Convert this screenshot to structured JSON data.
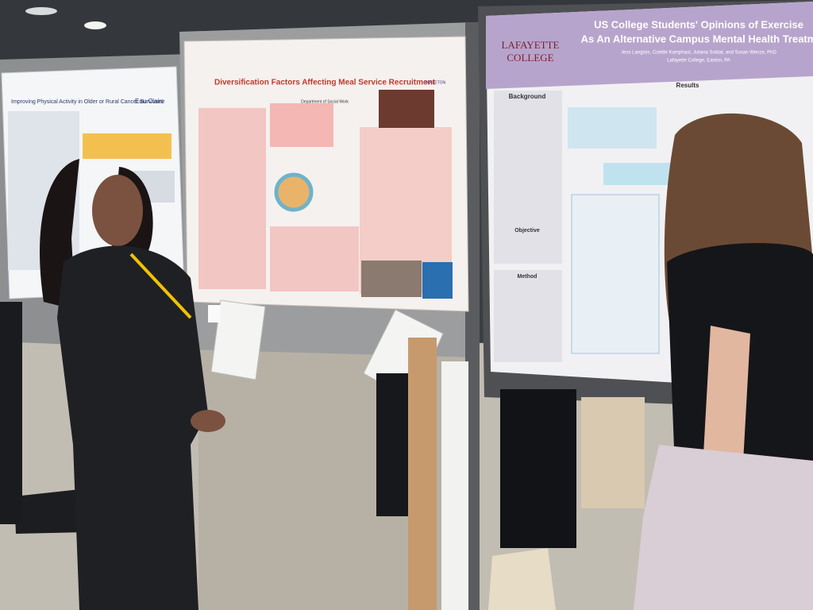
{
  "posters": {
    "left": {
      "title": "Improving Physical Activity in Older or Rural Cancer Survivors",
      "institution": "Eau Claire"
    },
    "center": {
      "title": "Diversification Factors Affecting Meal Service Recruitment",
      "department": "Department of Social Work",
      "logo": "TARLETON"
    },
    "right": {
      "title_lines": [
        "US College Students' Opinions of Exercise",
        "As An Alternative Campus Mental Health Treatm"
      ],
      "college_lines": [
        "LAFAYETTE",
        "COLLEGE"
      ],
      "authors": "Jess Langlois, Colette Kamphaul, Juliana Soldat, and Susan Wenze, PhD",
      "affiliation": "Lafayette College, Easton, PA",
      "sections": [
        "Background",
        "Results",
        "Objective",
        "Method"
      ]
    }
  }
}
